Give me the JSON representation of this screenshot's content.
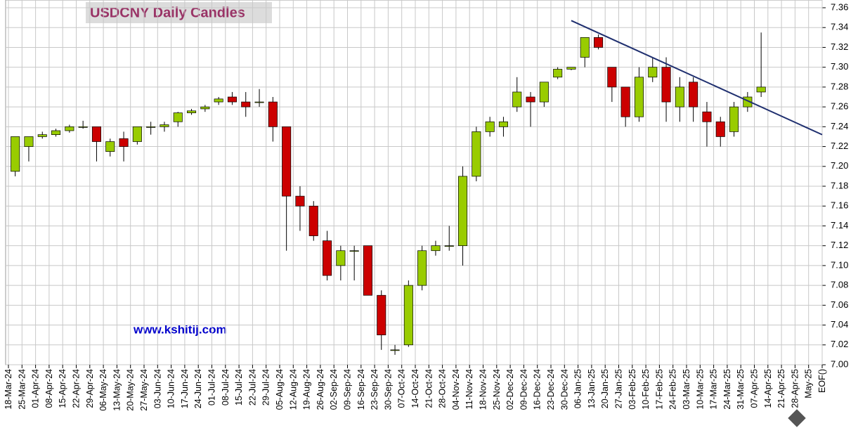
{
  "chart_data": {
    "type": "candlestick",
    "title": "USDCNY Daily Candles",
    "annotation": "www.kshitij.com",
    "categories": [
      "18-Mar-24",
      "25-Mar-24",
      "01-Apr-24",
      "08-Apr-24",
      "15-Apr-24",
      "22-Apr-24",
      "29-Apr-24",
      "06-May-24",
      "13-May-24",
      "20-May-24",
      "27-May-24",
      "03-Jun-24",
      "10-Jun-24",
      "17-Jun-24",
      "24-Jun-24",
      "01-Jul-24",
      "08-Jul-24",
      "15-Jul-24",
      "22-Jul-24",
      "29-Jul-24",
      "05-Aug-24",
      "12-Aug-24",
      "19-Aug-24",
      "26-Aug-24",
      "02-Sep-24",
      "09-Sep-24",
      "16-Sep-24",
      "23-Sep-24",
      "30-Sep-24",
      "07-Oct-24",
      "14-Oct-24",
      "21-Oct-24",
      "28-Oct-24",
      "04-Nov-24",
      "11-Nov-24",
      "18-Nov-24",
      "25-Nov-24",
      "02-Dec-24",
      "09-Dec-24",
      "16-Dec-24",
      "23-Dec-24",
      "30-Dec-24",
      "06-Jan-25",
      "13-Jan-25",
      "20-Jan-25",
      "27-Jan-25",
      "03-Feb-25",
      "10-Feb-25",
      "17-Feb-25",
      "24-Feb-25",
      "03-Mar-25",
      "10-Mar-25",
      "17-Mar-25",
      "24-Mar-25",
      "31-Mar-25",
      "07-Apr-25",
      "14-Apr-25",
      "21-Apr-25",
      "28-Apr-25",
      "May-25",
      "EOF()"
    ],
    "open": [
      7.195,
      7.22,
      7.23,
      7.232,
      7.236,
      7.24,
      7.24,
      7.215,
      7.228,
      7.225,
      7.24,
      7.24,
      7.245,
      7.254,
      7.258,
      7.265,
      7.27,
      7.265,
      7.265,
      7.265,
      7.24,
      7.17,
      7.16,
      7.125,
      7.1,
      7.115,
      7.12,
      7.07,
      7.015,
      7.02,
      7.08,
      7.115,
      7.12,
      7.12,
      7.19,
      7.235,
      7.24,
      7.26,
      7.27,
      7.265,
      7.29,
      7.298,
      7.31,
      7.33,
      7.3,
      7.28,
      7.25,
      7.29,
      7.3,
      7.26,
      7.285,
      7.255,
      7.245,
      7.235,
      7.26,
      7.275,
      null,
      null,
      null,
      null,
      null
    ],
    "high": [
      7.23,
      7.23,
      7.235,
      7.238,
      7.242,
      7.246,
      7.24,
      7.228,
      7.235,
      7.24,
      7.245,
      7.245,
      7.255,
      7.258,
      7.262,
      7.27,
      7.275,
      7.275,
      7.278,
      7.27,
      7.24,
      7.18,
      7.165,
      7.135,
      7.12,
      7.12,
      7.12,
      7.075,
      7.02,
      7.085,
      7.12,
      7.125,
      7.14,
      7.2,
      7.24,
      7.25,
      7.25,
      7.29,
      7.275,
      7.285,
      7.3,
      7.3,
      7.33,
      7.333,
      7.3,
      7.28,
      7.3,
      7.31,
      7.31,
      7.29,
      7.29,
      7.265,
      7.25,
      7.265,
      7.275,
      7.335,
      null,
      null,
      null,
      null,
      null
    ],
    "low": [
      7.19,
      7.205,
      7.228,
      7.23,
      7.234,
      7.238,
      7.205,
      7.21,
      7.205,
      7.222,
      7.232,
      7.235,
      7.24,
      7.252,
      7.255,
      7.262,
      7.262,
      7.25,
      7.26,
      7.225,
      7.115,
      7.135,
      7.125,
      7.085,
      7.085,
      7.085,
      7.07,
      7.015,
      7.01,
      7.018,
      7.075,
      7.11,
      7.115,
      7.1,
      7.185,
      7.23,
      7.23,
      7.255,
      7.24,
      7.26,
      7.288,
      7.297,
      7.3,
      7.318,
      7.265,
      7.24,
      7.245,
      7.285,
      7.245,
      7.245,
      7.245,
      7.22,
      7.22,
      7.23,
      7.255,
      7.27,
      null,
      null,
      null,
      null,
      null
    ],
    "close": [
      7.23,
      7.23,
      7.232,
      7.236,
      7.24,
      7.24,
      7.225,
      7.225,
      7.22,
      7.24,
      7.24,
      7.242,
      7.254,
      7.256,
      7.26,
      7.268,
      7.265,
      7.26,
      7.265,
      7.24,
      7.17,
      7.16,
      7.13,
      7.09,
      7.115,
      7.115,
      7.07,
      7.03,
      7.015,
      7.08,
      7.115,
      7.12,
      7.12,
      7.19,
      7.235,
      7.245,
      7.245,
      7.275,
      7.265,
      7.285,
      7.298,
      7.3,
      7.33,
      7.32,
      7.28,
      7.25,
      7.29,
      7.3,
      7.265,
      7.28,
      7.26,
      7.245,
      7.23,
      7.26,
      7.27,
      7.28,
      null,
      null,
      null,
      null,
      null
    ],
    "up_color": "#99cc00",
    "down_color": "#cc0000",
    "trendline": {
      "color": "#1f2f6f",
      "start": {
        "category": "30-Dec-24",
        "value": 7.347
      },
      "end": {
        "category": "EOF()",
        "value": 7.232
      }
    },
    "ylim": [
      7.0,
      7.36
    ],
    "yticks": [
      {
        "value": 7.0,
        "label": "7.00"
      },
      7.02,
      7.04,
      7.06,
      7.08,
      {
        "value": 7.1,
        "label": "7.10"
      },
      7.12,
      7.14,
      7.16,
      7.18,
      {
        "value": 7.2,
        "label": "7.20"
      },
      7.22,
      7.24,
      7.26,
      7.28,
      {
        "value": 7.3,
        "label": "7.30"
      },
      7.32,
      7.34,
      7.36
    ],
    "grid": true
  }
}
